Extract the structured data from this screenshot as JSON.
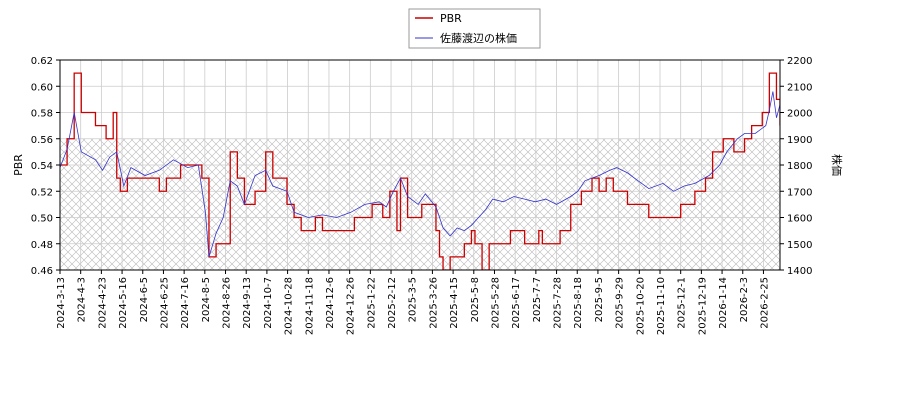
{
  "chart_data": {
    "type": "line",
    "title": "",
    "legend": {
      "placement": "top-center",
      "entries": [
        {
          "label": "PBR",
          "color": "#cc0000"
        },
        {
          "label": "佐藤渡辺の株価",
          "color": "#3333cc"
        }
      ]
    },
    "y_left": {
      "label": "PBR",
      "lim": [
        0.46,
        0.62
      ],
      "ticks": [
        "0.46",
        "0.48",
        "0.50",
        "0.52",
        "0.54",
        "0.56",
        "0.58",
        "0.60",
        "0.62"
      ]
    },
    "y_right": {
      "label": "株価",
      "lim": [
        1400,
        2200
      ],
      "ticks": [
        "1400",
        "1500",
        "1600",
        "1700",
        "1800",
        "1900",
        "2000",
        "2100",
        "2200"
      ]
    },
    "x_ticks": [
      "2024-3-13",
      "2024-4-3",
      "2024-4-23",
      "2024-5-16",
      "2024-6-5",
      "2024-6-25",
      "2024-7-16",
      "2024-8-5",
      "2024-8-26",
      "2024-9-13",
      "2024-10-7",
      "2024-10-28",
      "2024-11-18",
      "2024-12-6",
      "2024-12-26",
      "2025-1-22",
      "2025-2-12",
      "2025-3-5",
      "2025-3-26",
      "2025-4-15",
      "2025-5-8",
      "2025-5-28",
      "2025-6-17",
      "2025-7-7",
      "2025-7-28",
      "2025-8-18",
      "2025-9-5",
      "2025-9-29",
      "2025-10-20",
      "2025-11-10",
      "2025-12-1",
      "2025-12-19",
      "2026-1-14",
      "2026-2-3",
      "2026-2-25"
    ],
    "grid": true,
    "shaded_band_right": [
      1400,
      1900
    ],
    "series": [
      {
        "name": "PBR",
        "axis": "left",
        "color": "#cc0000",
        "points": [
          [
            0,
            0.54
          ],
          [
            2,
            0.56
          ],
          [
            4,
            0.61
          ],
          [
            6,
            0.58
          ],
          [
            10,
            0.57
          ],
          [
            13,
            0.56
          ],
          [
            15,
            0.58
          ],
          [
            16,
            0.53
          ],
          [
            17,
            0.52
          ],
          [
            19,
            0.53
          ],
          [
            28,
            0.52
          ],
          [
            30,
            0.53
          ],
          [
            34,
            0.54
          ],
          [
            40,
            0.53
          ],
          [
            42,
            0.47
          ],
          [
            44,
            0.48
          ],
          [
            48,
            0.55
          ],
          [
            50,
            0.53
          ],
          [
            52,
            0.51
          ],
          [
            55,
            0.52
          ],
          [
            58,
            0.55
          ],
          [
            60,
            0.53
          ],
          [
            64,
            0.51
          ],
          [
            66,
            0.5
          ],
          [
            68,
            0.49
          ],
          [
            72,
            0.5
          ],
          [
            74,
            0.49
          ],
          [
            83,
            0.5
          ],
          [
            88,
            0.51
          ],
          [
            91,
            0.5
          ],
          [
            93,
            0.52
          ],
          [
            95,
            0.49
          ],
          [
            96,
            0.53
          ],
          [
            98,
            0.5
          ],
          [
            102,
            0.51
          ],
          [
            106,
            0.49
          ],
          [
            107,
            0.47
          ],
          [
            108,
            0.46
          ],
          [
            110,
            0.47
          ],
          [
            114,
            0.48
          ],
          [
            116,
            0.49
          ],
          [
            117,
            0.48
          ],
          [
            119,
            0.46
          ],
          [
            121,
            0.48
          ],
          [
            127,
            0.49
          ],
          [
            131,
            0.48
          ],
          [
            135,
            0.49
          ],
          [
            136,
            0.48
          ],
          [
            139,
            0.48
          ],
          [
            141,
            0.49
          ],
          [
            144,
            0.51
          ],
          [
            147,
            0.52
          ],
          [
            150,
            0.53
          ],
          [
            152,
            0.52
          ],
          [
            154,
            0.53
          ],
          [
            156,
            0.52
          ],
          [
            160,
            0.51
          ],
          [
            166,
            0.5
          ],
          [
            175,
            0.51
          ],
          [
            179,
            0.52
          ],
          [
            182,
            0.53
          ],
          [
            184,
            0.55
          ],
          [
            187,
            0.56
          ],
          [
            190,
            0.55
          ],
          [
            193,
            0.56
          ],
          [
            195,
            0.57
          ],
          [
            198,
            0.58
          ],
          [
            200,
            0.61
          ],
          [
            202,
            0.59
          ],
          [
            203,
            0.57
          ]
        ]
      },
      {
        "name": "佐藤渡辺の株価",
        "axis": "right",
        "color": "#3333cc",
        "points": [
          [
            0,
            1790
          ],
          [
            2,
            1860
          ],
          [
            4,
            2000
          ],
          [
            6,
            1850
          ],
          [
            10,
            1820
          ],
          [
            12,
            1780
          ],
          [
            14,
            1830
          ],
          [
            16,
            1850
          ],
          [
            18,
            1720
          ],
          [
            20,
            1790
          ],
          [
            24,
            1760
          ],
          [
            28,
            1780
          ],
          [
            32,
            1820
          ],
          [
            36,
            1790
          ],
          [
            39,
            1800
          ],
          [
            41,
            1620
          ],
          [
            42,
            1450
          ],
          [
            44,
            1540
          ],
          [
            46,
            1600
          ],
          [
            48,
            1740
          ],
          [
            50,
            1720
          ],
          [
            52,
            1650
          ],
          [
            55,
            1760
          ],
          [
            58,
            1780
          ],
          [
            60,
            1720
          ],
          [
            64,
            1700
          ],
          [
            66,
            1620
          ],
          [
            70,
            1600
          ],
          [
            74,
            1610
          ],
          [
            78,
            1600
          ],
          [
            82,
            1620
          ],
          [
            86,
            1650
          ],
          [
            90,
            1660
          ],
          [
            92,
            1640
          ],
          [
            94,
            1700
          ],
          [
            96,
            1750
          ],
          [
            98,
            1680
          ],
          [
            101,
            1650
          ],
          [
            103,
            1690
          ],
          [
            106,
            1640
          ],
          [
            108,
            1560
          ],
          [
            110,
            1530
          ],
          [
            112,
            1560
          ],
          [
            114,
            1550
          ],
          [
            116,
            1570
          ],
          [
            118,
            1600
          ],
          [
            120,
            1630
          ],
          [
            122,
            1670
          ],
          [
            125,
            1660
          ],
          [
            128,
            1680
          ],
          [
            131,
            1670
          ],
          [
            134,
            1660
          ],
          [
            137,
            1670
          ],
          [
            140,
            1650
          ],
          [
            144,
            1680
          ],
          [
            146,
            1700
          ],
          [
            148,
            1740
          ],
          [
            150,
            1750
          ],
          [
            152,
            1760
          ],
          [
            155,
            1780
          ],
          [
            157,
            1790
          ],
          [
            160,
            1770
          ],
          [
            163,
            1740
          ],
          [
            166,
            1710
          ],
          [
            170,
            1730
          ],
          [
            173,
            1700
          ],
          [
            176,
            1720
          ],
          [
            179,
            1730
          ],
          [
            183,
            1760
          ],
          [
            186,
            1800
          ],
          [
            188,
            1850
          ],
          [
            191,
            1900
          ],
          [
            193,
            1920
          ],
          [
            196,
            1920
          ],
          [
            199,
            1950
          ],
          [
            200,
            2010
          ],
          [
            201,
            2080
          ],
          [
            202,
            1980
          ],
          [
            203,
            2030
          ]
        ]
      }
    ]
  }
}
